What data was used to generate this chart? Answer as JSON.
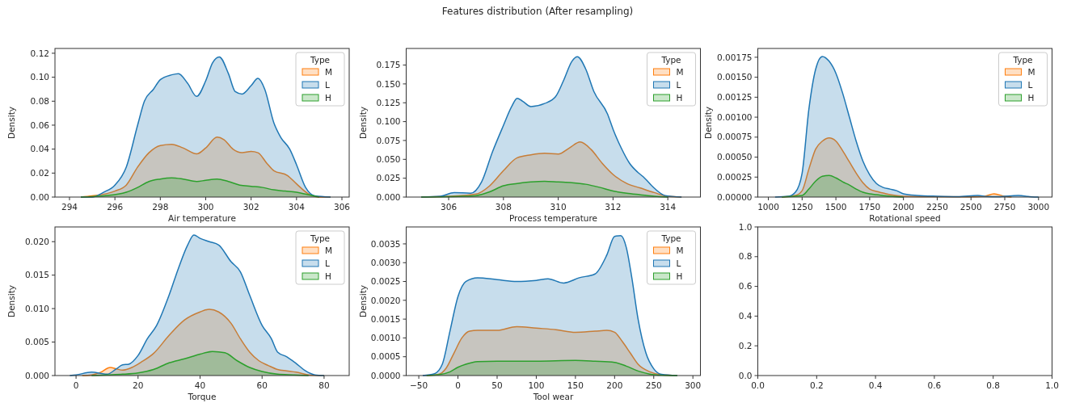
{
  "chart_data": [
    {
      "type": "other",
      "title": "Features distribution (After resampling)"
    },
    {
      "type": "area",
      "xlabel": "Air temperature",
      "ylabel": "Density",
      "legend_title": "Type",
      "legend": "top right",
      "xlim": [
        293.36,
        306.32
      ],
      "ylim": [
        0,
        0.124
      ],
      "xticks": [
        294,
        296,
        298,
        300,
        302,
        304,
        306
      ],
      "yticks": [
        {
          "value": 0,
          "label": "0.00"
        },
        {
          "value": 0.02,
          "label": "0.02"
        },
        {
          "value": 0.04,
          "label": "0.04"
        },
        {
          "value": 0.06,
          "label": "0.06"
        },
        {
          "value": 0.08,
          "label": "0.08"
        },
        {
          "value": 0.1,
          "label": "0.10"
        },
        {
          "value": 0.12,
          "label": "0.12"
        }
      ],
      "series": [
        {
          "name": "M",
          "color": "#ff7f0e",
          "x": [
            294.5,
            295,
            296,
            296.5,
            297,
            297.5,
            298,
            298.5,
            299,
            299.6,
            300,
            300.5,
            300.8,
            301.2,
            301.6,
            302,
            302.3,
            302.7,
            303,
            303.6,
            304,
            304.5,
            305,
            305.5
          ],
          "values": [
            0,
            0.001,
            0.005,
            0.01,
            0.025,
            0.037,
            0.043,
            0.044,
            0.041,
            0.036,
            0.041,
            0.05,
            0.048,
            0.04,
            0.037,
            0.038,
            0.037,
            0.028,
            0.022,
            0.018,
            0.011,
            0.003,
            0,
            0
          ]
        },
        {
          "name": "L",
          "color": "#1f77b4",
          "x": [
            294.5,
            295,
            295.5,
            296,
            296.5,
            297,
            297.3,
            297.7,
            298,
            298.5,
            298.8,
            299.2,
            299.6,
            300,
            300.3,
            300.6,
            301,
            301.3,
            301.6,
            302,
            302.3,
            302.6,
            303,
            303.3,
            303.7,
            304,
            304.4,
            304.8,
            305.5
          ],
          "values": [
            0,
            0,
            0.004,
            0.01,
            0.025,
            0.06,
            0.08,
            0.09,
            0.098,
            0.102,
            0.103,
            0.095,
            0.084,
            0.097,
            0.112,
            0.117,
            0.103,
            0.088,
            0.086,
            0.093,
            0.099,
            0.09,
            0.062,
            0.05,
            0.04,
            0.027,
            0.008,
            0.001,
            0
          ]
        },
        {
          "name": "H",
          "color": "#2ca02c",
          "x": [
            294.5,
            295.5,
            296.5,
            297,
            297.5,
            298,
            298.5,
            299,
            299.6,
            300,
            300.5,
            301,
            301.5,
            302,
            302.5,
            303,
            303.5,
            304,
            304.5,
            305
          ],
          "values": [
            0,
            0.001,
            0.004,
            0.008,
            0.013,
            0.015,
            0.016,
            0.015,
            0.013,
            0.014,
            0.015,
            0.013,
            0.01,
            0.009,
            0.008,
            0.006,
            0.005,
            0.004,
            0.002,
            0
          ]
        }
      ]
    },
    {
      "type": "area",
      "xlabel": "Process temperature",
      "ylabel": "Density",
      "legend_title": "Type",
      "legend": "top right",
      "xlim": [
        304.45,
        315.19
      ],
      "ylim": [
        0,
        0.197
      ],
      "xticks": [
        306,
        308,
        310,
        312,
        314
      ],
      "yticks": [
        {
          "value": 0,
          "label": "0.000"
        },
        {
          "value": 0.025,
          "label": "0.025"
        },
        {
          "value": 0.05,
          "label": "0.050"
        },
        {
          "value": 0.075,
          "label": "0.075"
        },
        {
          "value": 0.1,
          "label": "0.100"
        },
        {
          "value": 0.125,
          "label": "0.125"
        },
        {
          "value": 0.15,
          "label": "0.150"
        },
        {
          "value": 0.175,
          "label": "0.175"
        }
      ],
      "series": [
        {
          "name": "M",
          "color": "#ff7f0e",
          "x": [
            305,
            306,
            307,
            307.5,
            308,
            308.5,
            309,
            309.5,
            310,
            310.4,
            310.8,
            311.2,
            311.6,
            312,
            312.5,
            313,
            313.5,
            314,
            314.5
          ],
          "values": [
            0,
            0.001,
            0.004,
            0.015,
            0.035,
            0.052,
            0.056,
            0.058,
            0.057,
            0.065,
            0.073,
            0.063,
            0.045,
            0.03,
            0.018,
            0.012,
            0.006,
            0.001,
            0
          ]
        },
        {
          "name": "L",
          "color": "#1f77b4",
          "x": [
            305,
            305.7,
            306.2,
            306.8,
            307.2,
            307.6,
            308,
            308.3,
            308.5,
            308.7,
            309,
            309.5,
            309.9,
            310.2,
            310.5,
            310.7,
            311,
            311.3,
            311.8,
            312,
            312.3,
            312.6,
            312.9,
            313.1,
            313.5,
            313.9,
            314.5
          ],
          "values": [
            0,
            0.001,
            0.006,
            0.005,
            0.02,
            0.06,
            0.095,
            0.12,
            0.131,
            0.127,
            0.12,
            0.124,
            0.133,
            0.155,
            0.18,
            0.186,
            0.17,
            0.14,
            0.11,
            0.09,
            0.065,
            0.045,
            0.033,
            0.027,
            0.012,
            0.002,
            0
          ]
        },
        {
          "name": "H",
          "color": "#2ca02c",
          "x": [
            305,
            306.5,
            307,
            307.5,
            308,
            308.5,
            309,
            309.5,
            310,
            310.5,
            311,
            311.5,
            312,
            312.5,
            313,
            313.5,
            314
          ],
          "values": [
            0,
            0.001,
            0.002,
            0.007,
            0.015,
            0.018,
            0.02,
            0.021,
            0.02,
            0.019,
            0.017,
            0.013,
            0.008,
            0.005,
            0.003,
            0.001,
            0
          ]
        }
      ]
    },
    {
      "type": "area",
      "xlabel": "Rotational speed",
      "ylabel": "Density",
      "legend_title": "Type",
      "legend": "top right",
      "xlim": [
        922,
        3100
      ],
      "ylim": [
        0,
        0.00186
      ],
      "xticks": [
        1000,
        1250,
        1500,
        1750,
        2000,
        2250,
        2500,
        2750,
        3000
      ],
      "yticks": [
        {
          "value": 0,
          "label": "0.00000"
        },
        {
          "value": 0.00025,
          "label": "0.00025"
        },
        {
          "value": 0.0005,
          "label": "0.00050"
        },
        {
          "value": 0.00075,
          "label": "0.00075"
        },
        {
          "value": 0.001,
          "label": "0.00100"
        },
        {
          "value": 0.00125,
          "label": "0.00125"
        },
        {
          "value": 0.0015,
          "label": "0.00150"
        },
        {
          "value": 0.00175,
          "label": "0.00175"
        }
      ],
      "series": [
        {
          "name": "M",
          "color": "#ff7f0e",
          "x": [
            1100,
            1200,
            1250,
            1300,
            1350,
            1400,
            1450,
            1500,
            1550,
            1600,
            1650,
            1700,
            1750,
            1800,
            1850,
            1900,
            2000,
            2200,
            2500,
            2600,
            2670,
            2750,
            2800
          ],
          "values": [
            0,
            2e-05,
            8e-05,
            0.00035,
            0.0006,
            0.0007,
            0.00074,
            0.0007,
            0.00058,
            0.00044,
            0.0003,
            0.00018,
            0.0001,
            7e-05,
            5e-05,
            3e-05,
            1e-05,
            5e-06,
            3e-06,
            1e-05,
            4e-05,
            1e-05,
            0
          ]
        },
        {
          "name": "L",
          "color": "#1f77b4",
          "x": [
            1050,
            1150,
            1200,
            1250,
            1300,
            1350,
            1400,
            1450,
            1500,
            1550,
            1600,
            1650,
            1700,
            1750,
            1800,
            1850,
            1900,
            1950,
            2000,
            2100,
            2250,
            2400,
            2550,
            2620,
            2700,
            2850,
            2950,
            3000
          ],
          "values": [
            0,
            1e-05,
            6e-05,
            0.0003,
            0.0011,
            0.0016,
            0.00176,
            0.0017,
            0.00155,
            0.0013,
            0.001,
            0.0007,
            0.00045,
            0.00028,
            0.00017,
            0.00012,
            0.0001,
            8e-05,
            4e-05,
            2e-05,
            1e-05,
            5e-06,
            2e-05,
            8e-06,
            5e-06,
            2e-05,
            3e-06,
            0
          ]
        },
        {
          "name": "H",
          "color": "#2ca02c",
          "x": [
            1100,
            1250,
            1300,
            1350,
            1400,
            1450,
            1500,
            1550,
            1600,
            1650,
            1700,
            1750,
            1800,
            1900,
            2000
          ],
          "values": [
            0,
            2e-05,
            0.0001,
            0.0002,
            0.00026,
            0.00027,
            0.00024,
            0.00019,
            0.00015,
            0.0001,
            6e-05,
            4e-05,
            3e-05,
            1e-05,
            0
          ]
        }
      ]
    },
    {
      "type": "area",
      "xlabel": "Torque",
      "ylabel": "Density",
      "legend_title": "Type",
      "legend": "top right",
      "xlim": [
        -6.8,
        88.1
      ],
      "ylim": [
        0,
        0.0222
      ],
      "xticks": [
        0,
        20,
        40,
        60,
        80
      ],
      "yticks": [
        {
          "value": 0,
          "label": "0.000"
        },
        {
          "value": 0.005,
          "label": "0.005"
        },
        {
          "value": 0.01,
          "label": "0.010"
        },
        {
          "value": 0.015,
          "label": "0.015"
        },
        {
          "value": 0.02,
          "label": "0.020"
        }
      ],
      "series": [
        {
          "name": "M",
          "color": "#ff7f0e",
          "x": [
            2,
            5,
            8,
            11,
            13,
            15,
            18,
            21,
            25,
            30,
            35,
            40,
            43,
            46,
            50,
            53,
            56,
            59,
            62,
            65,
            68,
            71,
            75,
            80
          ],
          "values": [
            0,
            0.0001,
            0.0005,
            0.0012,
            0.001,
            0.0008,
            0.0012,
            0.002,
            0.0033,
            0.006,
            0.0083,
            0.0095,
            0.0099,
            0.0095,
            0.0078,
            0.0055,
            0.0035,
            0.0022,
            0.0015,
            0.0009,
            0.0007,
            0.0005,
            0.0001,
            0
          ]
        },
        {
          "name": "L",
          "color": "#1f77b4",
          "x": [
            -2,
            0,
            5,
            10,
            13,
            15,
            17,
            20,
            23,
            26,
            30,
            33,
            36,
            38,
            40,
            43,
            46,
            50,
            53,
            56,
            60,
            63,
            65,
            68,
            71,
            74,
            77,
            80
          ],
          "values": [
            0,
            0.0001,
            0.0005,
            0.0002,
            0.001,
            0.0016,
            0.0017,
            0.003,
            0.0055,
            0.0075,
            0.012,
            0.016,
            0.0195,
            0.021,
            0.0205,
            0.02,
            0.0195,
            0.017,
            0.0155,
            0.012,
            0.0075,
            0.0055,
            0.0035,
            0.0028,
            0.0018,
            0.0007,
            0.0001,
            0
          ]
        },
        {
          "name": "H",
          "color": "#2ca02c",
          "x": [
            5,
            10,
            15,
            20,
            25,
            30,
            35,
            40,
            44,
            48,
            52,
            56,
            60,
            65,
            70,
            75
          ],
          "values": [
            0,
            0.0001,
            0.0002,
            0.0004,
            0.0009,
            0.0019,
            0.0025,
            0.0032,
            0.0036,
            0.0034,
            0.0022,
            0.0012,
            0.0006,
            0.0002,
            0.0001,
            0
          ]
        }
      ]
    },
    {
      "type": "area",
      "xlabel": "Tool wear",
      "ylabel": "Density",
      "legend_title": "Type",
      "legend": "top right",
      "xlim": [
        -66.1,
        309.6
      ],
      "ylim": [
        0,
        0.00395
      ],
      "xticks": [
        {
          "value": -50,
          "label": "−50"
        },
        0,
        50,
        100,
        150,
        200,
        250,
        300
      ],
      "yticks": [
        {
          "value": 0,
          "label": "0.0000"
        },
        {
          "value": 0.0005,
          "label": "0.0005"
        },
        {
          "value": 0.001,
          "label": "0.0010"
        },
        {
          "value": 0.0015,
          "label": "0.0015"
        },
        {
          "value": 0.002,
          "label": "0.0020"
        },
        {
          "value": 0.0025,
          "label": "0.0025"
        },
        {
          "value": 0.003,
          "label": "0.0030"
        },
        {
          "value": 0.0035,
          "label": "0.0035"
        }
      ],
      "series": [
        {
          "name": "M",
          "color": "#ff7f0e",
          "x": [
            -40,
            -25,
            -15,
            -5,
            5,
            15,
            25,
            50,
            75,
            100,
            125,
            150,
            175,
            190,
            200,
            210,
            220,
            230,
            245,
            260,
            280
          ],
          "values": [
            0,
            3e-05,
            0.0002,
            0.0006,
            0.001,
            0.00118,
            0.0012,
            0.0012,
            0.0013,
            0.00126,
            0.00122,
            0.00115,
            0.00118,
            0.0012,
            0.00115,
            0.0009,
            0.0006,
            0.0003,
            0.0001,
            2e-05,
            0
          ]
        },
        {
          "name": "L",
          "color": "#1f77b4",
          "x": [
            -45,
            -30,
            -20,
            -10,
            0,
            10,
            25,
            50,
            75,
            100,
            115,
            135,
            155,
            175,
            190,
            200,
            208,
            215,
            222,
            230,
            240,
            250,
            260,
            280
          ],
          "values": [
            0,
            5e-05,
            0.0003,
            0.0012,
            0.0021,
            0.0025,
            0.0026,
            0.00255,
            0.0025,
            0.00253,
            0.00257,
            0.00246,
            0.0026,
            0.0027,
            0.0032,
            0.0037,
            0.00372,
            0.0034,
            0.0026,
            0.0015,
            0.0006,
            0.00018,
            3e-05,
            0
          ]
        },
        {
          "name": "H",
          "color": "#2ca02c",
          "x": [
            -40,
            -25,
            -10,
            0,
            10,
            25,
            50,
            100,
            150,
            175,
            200,
            215,
            230,
            245,
            260,
            280
          ],
          "values": [
            0,
            2e-05,
            0.0001,
            0.00022,
            0.0003,
            0.00037,
            0.00038,
            0.00038,
            0.0004,
            0.00038,
            0.00035,
            0.00025,
            0.00012,
            4e-05,
            1e-05,
            0
          ]
        }
      ]
    },
    {
      "type": "line",
      "xlim": [
        0,
        1
      ],
      "ylim": [
        0,
        1
      ],
      "xticks": [
        {
          "value": 0,
          "label": "0.0"
        },
        {
          "value": 0.2,
          "label": "0.2"
        },
        {
          "value": 0.4,
          "label": "0.4"
        },
        {
          "value": 0.6,
          "label": "0.6"
        },
        {
          "value": 0.8,
          "label": "0.8"
        },
        {
          "value": 1,
          "label": "1.0"
        }
      ],
      "yticks": [
        {
          "value": 0,
          "label": "0.0"
        },
        {
          "value": 0.2,
          "label": "0.2"
        },
        {
          "value": 0.4,
          "label": "0.4"
        },
        {
          "value": 0.6,
          "label": "0.6"
        },
        {
          "value": 0.8,
          "label": "0.8"
        },
        {
          "value": 1,
          "label": "1.0"
        }
      ]
    }
  ]
}
